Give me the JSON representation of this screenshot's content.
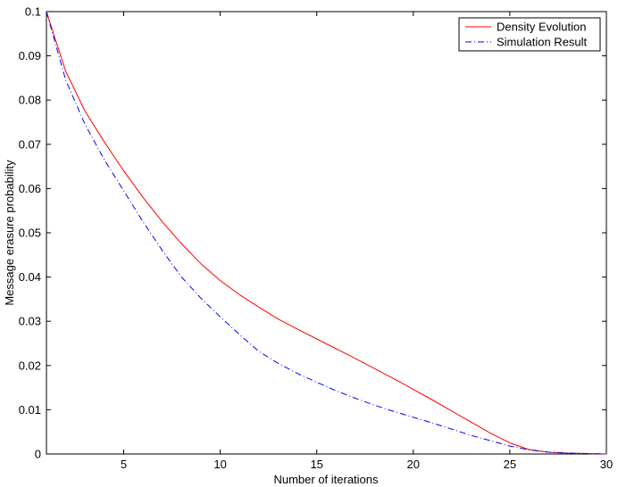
{
  "chart_data": {
    "type": "line",
    "title": "",
    "xlabel": "Number of iterations",
    "ylabel": "Message erasure probability",
    "xlim": [
      1,
      30
    ],
    "ylim": [
      0,
      0.1
    ],
    "x_ticks": [
      5,
      10,
      15,
      20,
      25,
      30
    ],
    "y_ticks": [
      0,
      0.01,
      0.02,
      0.03,
      0.04,
      0.05,
      0.06,
      0.07,
      0.08,
      0.09,
      0.1
    ],
    "grid": false,
    "legend_position": "top-right",
    "series": [
      {
        "name": "Density Evolution",
        "color": "#ff0000",
        "style": "solid",
        "x": [
          1,
          2,
          3,
          4,
          5,
          6,
          7,
          8,
          9,
          10,
          11,
          12,
          13,
          14,
          15,
          16,
          17,
          18,
          19,
          20,
          21,
          22,
          23,
          24,
          25,
          26,
          27,
          28,
          29,
          30
        ],
        "y": [
          0.1,
          0.0865,
          0.0775,
          0.0705,
          0.064,
          0.058,
          0.0525,
          0.0475,
          0.043,
          0.0392,
          0.036,
          0.0332,
          0.0305,
          0.0282,
          0.026,
          0.0238,
          0.0216,
          0.0193,
          0.017,
          0.0146,
          0.0122,
          0.0097,
          0.0072,
          0.0047,
          0.0025,
          0.001,
          0.0004,
          0.0002,
          0.0001,
          0.0
        ]
      },
      {
        "name": "Simulation Result",
        "color": "#0000ff",
        "style": "dashdot",
        "x": [
          1,
          2,
          3,
          4,
          5,
          6,
          7,
          8,
          9,
          10,
          11,
          12,
          13,
          14,
          15,
          16,
          17,
          18,
          19,
          20,
          21,
          22,
          23,
          24,
          25,
          26,
          27,
          28,
          29,
          30
        ],
        "y": [
          0.1,
          0.0845,
          0.0745,
          0.0665,
          0.0595,
          0.0525,
          0.046,
          0.04,
          0.0352,
          0.031,
          0.027,
          0.0232,
          0.0205,
          0.0182,
          0.0162,
          0.0143,
          0.0126,
          0.011,
          0.0096,
          0.0083,
          0.007,
          0.0056,
          0.0042,
          0.003,
          0.0018,
          0.0009,
          0.0004,
          0.0002,
          0.0001,
          0.0
        ]
      }
    ]
  }
}
